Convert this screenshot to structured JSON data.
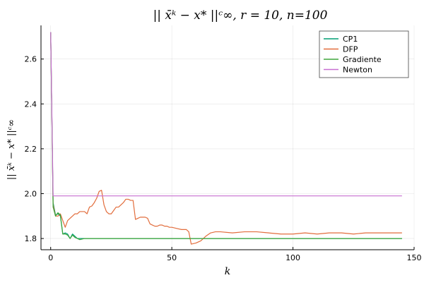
{
  "chart_data": {
    "type": "line",
    "title": "|| x̄ᵏ − x* ||ᶜ∞,  r = 10, n=100",
    "xlabel": "k",
    "ylabel": "|| x̄ᵏ − x* ||ᶜ∞",
    "xlim": [
      -4,
      150
    ],
    "ylim": [
      1.75,
      2.75
    ],
    "xticks": [
      0,
      50,
      100,
      150
    ],
    "yticks": [
      1.8,
      2.0,
      2.2,
      2.4,
      2.6
    ],
    "xtick_labels": [
      "0",
      "50",
      "100",
      "150"
    ],
    "ytick_labels": [
      "1.8",
      "2.0",
      "2.2",
      "2.4",
      "2.6"
    ],
    "grid": true,
    "legend_position": "top-right",
    "series": [
      {
        "name": "CP1",
        "color": "#009e73",
        "x": [
          0,
          1,
          2,
          3,
          4,
          5,
          6,
          7,
          8,
          9,
          10,
          11,
          12,
          14,
          20,
          40,
          60,
          80,
          100,
          120,
          145
        ],
        "y": [
          2.72,
          1.96,
          1.905,
          1.91,
          1.9,
          1.82,
          1.825,
          1.82,
          1.8,
          1.82,
          1.81,
          1.8,
          1.8,
          1.8,
          1.8,
          1.8,
          1.8,
          1.8,
          1.8,
          1.8,
          1.8
        ]
      },
      {
        "name": "DFP",
        "color": "#e26d3c",
        "x": [
          0,
          1,
          2,
          3,
          4,
          5,
          6,
          7,
          8,
          9,
          10,
          11,
          12,
          13,
          14,
          15,
          16,
          17,
          18,
          19,
          20,
          21,
          22,
          23,
          24,
          25,
          26,
          27,
          28,
          29,
          30,
          31,
          32,
          33,
          34,
          35,
          36,
          37,
          38,
          39,
          40,
          41,
          42,
          43,
          44,
          45,
          46,
          47,
          48,
          49,
          50,
          52,
          54,
          56,
          57,
          58,
          60,
          62,
          64,
          66,
          68,
          70,
          75,
          80,
          85,
          90,
          95,
          100,
          105,
          110,
          115,
          120,
          125,
          130,
          135,
          140,
          145
        ],
        "y": [
          2.72,
          1.95,
          1.9,
          1.9,
          1.91,
          1.88,
          1.85,
          1.88,
          1.89,
          1.9,
          1.91,
          1.91,
          1.92,
          1.92,
          1.92,
          1.91,
          1.94,
          1.945,
          1.96,
          1.98,
          2.01,
          2.015,
          1.95,
          1.92,
          1.91,
          1.91,
          1.925,
          1.94,
          1.94,
          1.95,
          1.96,
          1.975,
          1.975,
          1.97,
          1.97,
          1.885,
          1.89,
          1.895,
          1.895,
          1.895,
          1.89,
          1.865,
          1.86,
          1.855,
          1.855,
          1.86,
          1.86,
          1.855,
          1.855,
          1.85,
          1.85,
          1.845,
          1.84,
          1.84,
          1.83,
          1.775,
          1.78,
          1.79,
          1.81,
          1.825,
          1.83,
          1.83,
          1.825,
          1.83,
          1.83,
          1.825,
          1.82,
          1.82,
          1.825,
          1.82,
          1.825,
          1.825,
          1.82,
          1.825,
          1.825,
          1.825,
          1.825
        ]
      },
      {
        "name": "Gradiente",
        "color": "#3ea53b",
        "x": [
          0,
          1,
          2,
          3,
          4,
          5,
          6,
          7,
          8,
          9,
          10,
          11,
          12,
          14,
          20,
          40,
          60,
          80,
          100,
          120,
          145
        ],
        "y": [
          2.72,
          1.94,
          1.9,
          1.915,
          1.905,
          1.82,
          1.82,
          1.815,
          1.8,
          1.815,
          1.805,
          1.8,
          1.795,
          1.8,
          1.8,
          1.8,
          1.8,
          1.8,
          1.8,
          1.8,
          1.8
        ]
      },
      {
        "name": "Newton",
        "color": "#c76fd1",
        "x": [
          0,
          1,
          2,
          5,
          20,
          50,
          100,
          145
        ],
        "y": [
          2.72,
          1.99,
          1.99,
          1.99,
          1.99,
          1.99,
          1.99,
          1.99
        ]
      }
    ]
  }
}
